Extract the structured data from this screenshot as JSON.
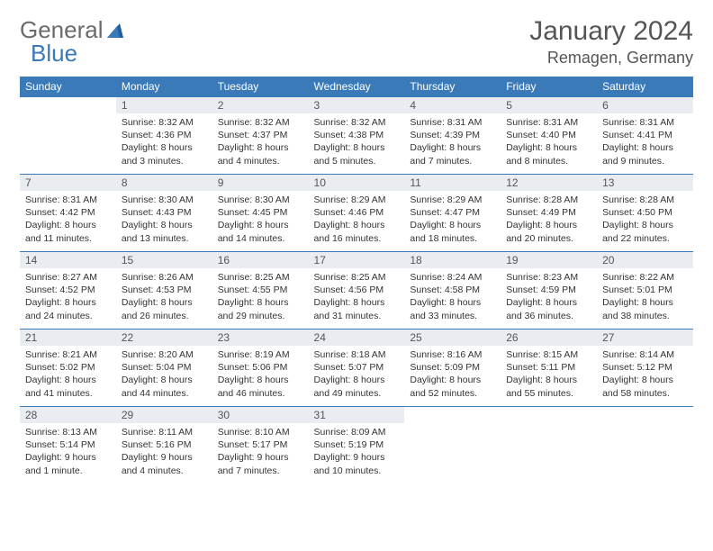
{
  "logo": {
    "part1": "General",
    "part2": "Blue"
  },
  "title": "January 2024",
  "location": "Remagen, Germany",
  "colors": {
    "header_bg": "#3a7ab8",
    "header_text": "#ffffff",
    "daynum_bg": "#e9edf1",
    "text": "#333333",
    "rule": "#3a7ab8",
    "logo_gray": "#6b6b6b",
    "logo_blue": "#3a7ab8"
  },
  "weekdays": [
    "Sunday",
    "Monday",
    "Tuesday",
    "Wednesday",
    "Thursday",
    "Friday",
    "Saturday"
  ],
  "start_offset": 1,
  "days": [
    {
      "n": 1,
      "sunrise": "8:32 AM",
      "sunset": "4:36 PM",
      "daylight": "8 hours and 3 minutes."
    },
    {
      "n": 2,
      "sunrise": "8:32 AM",
      "sunset": "4:37 PM",
      "daylight": "8 hours and 4 minutes."
    },
    {
      "n": 3,
      "sunrise": "8:32 AM",
      "sunset": "4:38 PM",
      "daylight": "8 hours and 5 minutes."
    },
    {
      "n": 4,
      "sunrise": "8:31 AM",
      "sunset": "4:39 PM",
      "daylight": "8 hours and 7 minutes."
    },
    {
      "n": 5,
      "sunrise": "8:31 AM",
      "sunset": "4:40 PM",
      "daylight": "8 hours and 8 minutes."
    },
    {
      "n": 6,
      "sunrise": "8:31 AM",
      "sunset": "4:41 PM",
      "daylight": "8 hours and 9 minutes."
    },
    {
      "n": 7,
      "sunrise": "8:31 AM",
      "sunset": "4:42 PM",
      "daylight": "8 hours and 11 minutes."
    },
    {
      "n": 8,
      "sunrise": "8:30 AM",
      "sunset": "4:43 PM",
      "daylight": "8 hours and 13 minutes."
    },
    {
      "n": 9,
      "sunrise": "8:30 AM",
      "sunset": "4:45 PM",
      "daylight": "8 hours and 14 minutes."
    },
    {
      "n": 10,
      "sunrise": "8:29 AM",
      "sunset": "4:46 PM",
      "daylight": "8 hours and 16 minutes."
    },
    {
      "n": 11,
      "sunrise": "8:29 AM",
      "sunset": "4:47 PM",
      "daylight": "8 hours and 18 minutes."
    },
    {
      "n": 12,
      "sunrise": "8:28 AM",
      "sunset": "4:49 PM",
      "daylight": "8 hours and 20 minutes."
    },
    {
      "n": 13,
      "sunrise": "8:28 AM",
      "sunset": "4:50 PM",
      "daylight": "8 hours and 22 minutes."
    },
    {
      "n": 14,
      "sunrise": "8:27 AM",
      "sunset": "4:52 PM",
      "daylight": "8 hours and 24 minutes."
    },
    {
      "n": 15,
      "sunrise": "8:26 AM",
      "sunset": "4:53 PM",
      "daylight": "8 hours and 26 minutes."
    },
    {
      "n": 16,
      "sunrise": "8:25 AM",
      "sunset": "4:55 PM",
      "daylight": "8 hours and 29 minutes."
    },
    {
      "n": 17,
      "sunrise": "8:25 AM",
      "sunset": "4:56 PM",
      "daylight": "8 hours and 31 minutes."
    },
    {
      "n": 18,
      "sunrise": "8:24 AM",
      "sunset": "4:58 PM",
      "daylight": "8 hours and 33 minutes."
    },
    {
      "n": 19,
      "sunrise": "8:23 AM",
      "sunset": "4:59 PM",
      "daylight": "8 hours and 36 minutes."
    },
    {
      "n": 20,
      "sunrise": "8:22 AM",
      "sunset": "5:01 PM",
      "daylight": "8 hours and 38 minutes."
    },
    {
      "n": 21,
      "sunrise": "8:21 AM",
      "sunset": "5:02 PM",
      "daylight": "8 hours and 41 minutes."
    },
    {
      "n": 22,
      "sunrise": "8:20 AM",
      "sunset": "5:04 PM",
      "daylight": "8 hours and 44 minutes."
    },
    {
      "n": 23,
      "sunrise": "8:19 AM",
      "sunset": "5:06 PM",
      "daylight": "8 hours and 46 minutes."
    },
    {
      "n": 24,
      "sunrise": "8:18 AM",
      "sunset": "5:07 PM",
      "daylight": "8 hours and 49 minutes."
    },
    {
      "n": 25,
      "sunrise": "8:16 AM",
      "sunset": "5:09 PM",
      "daylight": "8 hours and 52 minutes."
    },
    {
      "n": 26,
      "sunrise": "8:15 AM",
      "sunset": "5:11 PM",
      "daylight": "8 hours and 55 minutes."
    },
    {
      "n": 27,
      "sunrise": "8:14 AM",
      "sunset": "5:12 PM",
      "daylight": "8 hours and 58 minutes."
    },
    {
      "n": 28,
      "sunrise": "8:13 AM",
      "sunset": "5:14 PM",
      "daylight": "9 hours and 1 minute."
    },
    {
      "n": 29,
      "sunrise": "8:11 AM",
      "sunset": "5:16 PM",
      "daylight": "9 hours and 4 minutes."
    },
    {
      "n": 30,
      "sunrise": "8:10 AM",
      "sunset": "5:17 PM",
      "daylight": "9 hours and 7 minutes."
    },
    {
      "n": 31,
      "sunrise": "8:09 AM",
      "sunset": "5:19 PM",
      "daylight": "9 hours and 10 minutes."
    }
  ],
  "labels": {
    "sunrise": "Sunrise:",
    "sunset": "Sunset:",
    "daylight": "Daylight:"
  }
}
